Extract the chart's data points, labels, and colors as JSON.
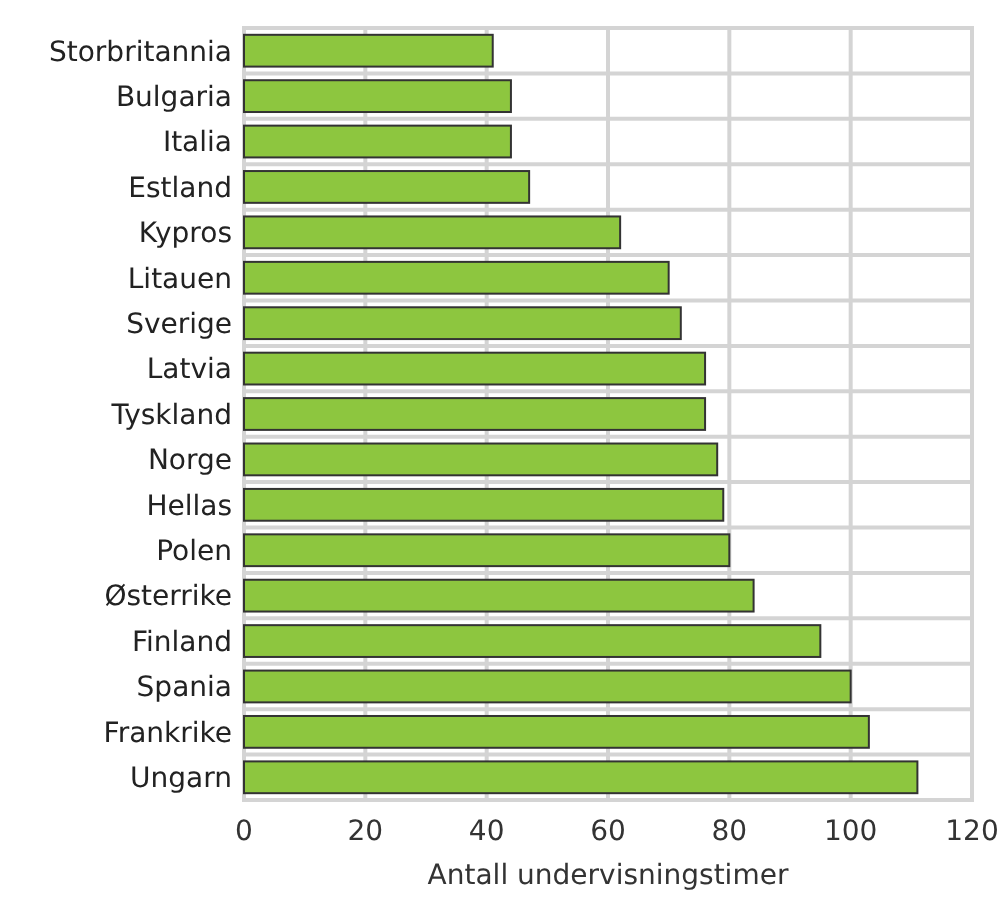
{
  "chart_data": {
    "type": "bar",
    "orientation": "horizontal",
    "xlabel": "Antall undervisningstimer",
    "categories": [
      "Storbritannia",
      "Bulgaria",
      "Italia",
      "Estland",
      "Kypros",
      "Litauen",
      "Sverige",
      "Latvia",
      "Tyskland",
      "Norge",
      "Hellas",
      "Polen",
      "Østerrike",
      "Finland",
      "Spania",
      "Frankrike",
      "Ungarn"
    ],
    "values": [
      41,
      44,
      44,
      47,
      62,
      70,
      72,
      76,
      76,
      78,
      79,
      80,
      84,
      95,
      100,
      103,
      111
    ],
    "color": "#8dc63f",
    "xlim": [
      0,
      120
    ],
    "xticks": [
      0,
      20,
      40,
      60,
      80,
      100,
      120
    ],
    "grid": true
  }
}
